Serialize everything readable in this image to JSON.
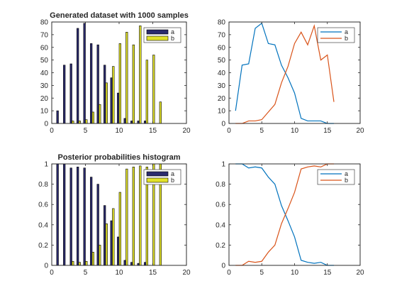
{
  "figure": {
    "background": "#ffffff"
  },
  "chart_data": [
    {
      "type": "bar",
      "title": "Generated dataset with 1000 samples",
      "xlabel": "",
      "ylabel": "",
      "xlim": [
        0,
        20
      ],
      "ylim": [
        0,
        80
      ],
      "xticks": [
        0,
        5,
        10,
        15,
        20
      ],
      "yticks": [
        0,
        10,
        20,
        30,
        40,
        50,
        60,
        70,
        80
      ],
      "x": [
        1,
        2,
        3,
        4,
        5,
        6,
        7,
        8,
        9,
        10,
        11,
        12,
        13,
        14,
        15,
        16
      ],
      "series": [
        {
          "name": "a",
          "color": "#2b2b6e",
          "values": [
            10,
            46,
            47,
            75,
            79,
            63,
            62,
            46,
            36,
            24,
            4,
            2,
            2,
            2,
            0,
            0
          ]
        },
        {
          "name": "b",
          "color": "#e2e22a",
          "values": [
            0,
            0,
            2,
            2,
            3,
            9,
            15,
            32,
            45,
            63,
            72,
            62,
            77,
            50,
            54,
            17
          ]
        }
      ],
      "legend": "top-right",
      "grid": false
    },
    {
      "type": "line",
      "title": "",
      "xlabel": "",
      "ylabel": "",
      "xlim": [
        0,
        20
      ],
      "ylim": [
        0,
        80
      ],
      "xticks": [
        0,
        5,
        10,
        15,
        20
      ],
      "yticks": [
        0,
        10,
        20,
        30,
        40,
        50,
        60,
        70,
        80
      ],
      "x": [
        1,
        2,
        3,
        4,
        5,
        6,
        7,
        8,
        9,
        10,
        11,
        12,
        13,
        14,
        15,
        16
      ],
      "series": [
        {
          "name": "a",
          "color": "#0072bd",
          "values": [
            10,
            46,
            47,
            75,
            79,
            63,
            62,
            46,
            36,
            24,
            4,
            2,
            2,
            2,
            0,
            0
          ]
        },
        {
          "name": "b",
          "color": "#d95319",
          "values": [
            0,
            0,
            2,
            2,
            3,
            9,
            15,
            32,
            45,
            63,
            72,
            62,
            77,
            50,
            54,
            17
          ]
        }
      ],
      "legend": "top-right",
      "grid": false
    },
    {
      "type": "bar",
      "title": "Posterior probabilities histogram",
      "xlabel": "",
      "ylabel": "",
      "xlim": [
        0,
        20
      ],
      "ylim": [
        0,
        1
      ],
      "xticks": [
        0,
        5,
        10,
        15,
        20
      ],
      "yticks": [
        0,
        0.2,
        0.4,
        0.6,
        0.8,
        1
      ],
      "ytick_labels": [
        "0",
        "0.2",
        "0.4",
        "0.6",
        "0.8",
        "1"
      ],
      "x": [
        1,
        2,
        3,
        4,
        5,
        6,
        7,
        8,
        9,
        10,
        11,
        12,
        13,
        14,
        15,
        16
      ],
      "series": [
        {
          "name": "a",
          "color": "#2b2b6e",
          "values": [
            1.0,
            1.0,
            0.96,
            0.97,
            0.96,
            0.87,
            0.8,
            0.59,
            0.44,
            0.28,
            0.05,
            0.03,
            0.02,
            0.03,
            0.0,
            0.0
          ]
        },
        {
          "name": "b",
          "color": "#e2e22a",
          "values": [
            0.0,
            0.0,
            0.04,
            0.03,
            0.04,
            0.13,
            0.2,
            0.41,
            0.56,
            0.72,
            0.95,
            0.97,
            0.98,
            0.97,
            1.0,
            1.0
          ]
        }
      ],
      "legend": "top-right",
      "grid": false
    },
    {
      "type": "line",
      "title": "",
      "xlabel": "",
      "ylabel": "",
      "xlim": [
        0,
        20
      ],
      "ylim": [
        0,
        1
      ],
      "xticks": [
        0,
        5,
        10,
        15,
        20
      ],
      "yticks": [
        0,
        0.2,
        0.4,
        0.6,
        0.8,
        1
      ],
      "ytick_labels": [
        "0",
        "0.2",
        "0.4",
        "0.6",
        "0.8",
        "1"
      ],
      "x": [
        1,
        2,
        3,
        4,
        5,
        6,
        7,
        8,
        9,
        10,
        11,
        12,
        13,
        14,
        15,
        16
      ],
      "series": [
        {
          "name": "a",
          "color": "#0072bd",
          "values": [
            1.0,
            1.0,
            0.96,
            0.97,
            0.96,
            0.87,
            0.8,
            0.59,
            0.44,
            0.28,
            0.05,
            0.03,
            0.02,
            0.03,
            0.0,
            0.0
          ]
        },
        {
          "name": "b",
          "color": "#d95319",
          "values": [
            0.0,
            0.0,
            0.04,
            0.03,
            0.04,
            0.13,
            0.2,
            0.41,
            0.56,
            0.72,
            0.95,
            0.97,
            0.98,
            0.97,
            1.0,
            1.0
          ]
        }
      ],
      "legend": "top-right",
      "grid": false
    }
  ]
}
